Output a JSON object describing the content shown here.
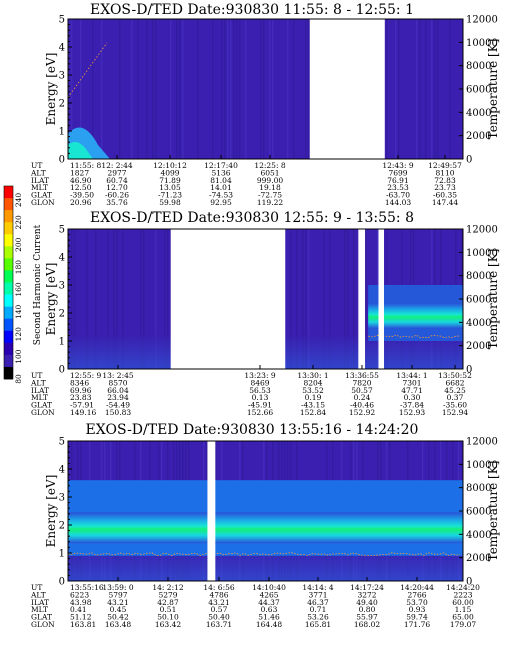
{
  "colors": {
    "background_plot": "#3a1fb0",
    "gap": "#ffffff",
    "band_cyan": "#18e6d2",
    "band_green": "#14f07a",
    "band_blue": "#1c6fe6",
    "temperature_trace": "#ff9a3a"
  },
  "colorbar": {
    "label": "Second Harmonic Current",
    "ticks": [
      "240",
      "220",
      "200",
      "180",
      "160",
      "140",
      "120",
      "100",
      "80"
    ],
    "colors": [
      "#ff0000",
      "#ff5500",
      "#ff9900",
      "#ffcc00",
      "#ffff00",
      "#aaff00",
      "#55ff00",
      "#00ff55",
      "#00ffaa",
      "#00ffff",
      "#00aaff",
      "#0055ff",
      "#0000ff",
      "#2a00b0",
      "#3a1fb0",
      "#000000"
    ]
  },
  "chart_data": [
    {
      "type": "heatmap",
      "title": "EXOS-D/TED   Date:930830   11:55: 8 - 12:55: 1",
      "ylabel": "Energy [eV]",
      "y2label": "Temperature [K]",
      "ylim": [
        0,
        5
      ],
      "y2lim": [
        0,
        12000
      ],
      "yticks": [
        "0",
        "1",
        "2",
        "3",
        "4",
        "5"
      ],
      "y2ticks": [
        "0",
        "2000",
        "4000",
        "6000",
        "8000",
        "10000",
        "12000"
      ],
      "gaps_fraction": [
        [
          0.612,
          0.802
        ]
      ],
      "band": null,
      "orbit_rows": [
        "UT",
        "ALT",
        "ILAT",
        "MLT",
        "GLAT",
        "GLON"
      ],
      "orbit_columns": [
        {
          "ut": "11:55: 8",
          "alt": "1827",
          "ilat": "46.90",
          "mlt": "12.50",
          "glat": "-39.50",
          "glon": "20.96"
        },
        {
          "ut": "12: 2:44",
          "alt": "2977",
          "ilat": "60.74",
          "mlt": "12.70",
          "glat": "-60.26",
          "glon": "35.76"
        },
        {
          "ut": "12:10:12",
          "alt": "4099",
          "ilat": "71.89",
          "mlt": "13.05",
          "glat": "-71.23",
          "glon": "59.98"
        },
        {
          "ut": "12:17:40",
          "alt": "5136",
          "ilat": "81.04",
          "mlt": "14.01",
          "glat": "-74.53",
          "glon": "92.95"
        },
        {
          "ut": "12:25: 8",
          "alt": "6051",
          "ilat": "999.00",
          "mlt": "19.18",
          "glat": "-72.75",
          "glon": "119.22"
        },
        {
          "ut": "12:43: 9",
          "alt": "7699",
          "ilat": "76.91",
          "mlt": "23.53",
          "glat": "-63.70",
          "glon": "144.03"
        },
        {
          "ut": "12:49:57",
          "alt": "8110",
          "ilat": "72.83",
          "mlt": "23.73",
          "glat": "-60.35",
          "glon": "147.44"
        }
      ]
    },
    {
      "type": "heatmap",
      "title": "EXOS-D/TED   Date:930830   12:55: 9 - 13:55: 8",
      "ylabel": "Energy [eV]",
      "y2label": "Temperature [K]",
      "ylim": [
        0,
        5
      ],
      "y2lim": [
        0,
        12000
      ],
      "yticks": [
        "0",
        "1",
        "2",
        "3",
        "4",
        "5"
      ],
      "y2ticks": [
        "0",
        "2000",
        "4000",
        "6000",
        "8000",
        "10000",
        "12000"
      ],
      "gaps_fraction": [
        [
          0.26,
          0.55
        ],
        [
          0.735,
          0.752
        ],
        [
          0.786,
          0.8
        ]
      ],
      "band": {
        "energy_center": 1.9,
        "from_fraction": 0.76,
        "to_fraction": 1.0,
        "temperature_k": 2800
      },
      "orbit_rows": [
        "UT",
        "ALT",
        "ILAT",
        "MLT",
        "GLAT",
        "GLON"
      ],
      "orbit_columns": [
        {
          "ut": "12:55: 9",
          "alt": "8346",
          "ilat": "69.96",
          "mlt": "23.83",
          "glat": "-57.91",
          "glon": "149.16"
        },
        {
          "ut": "13: 2:45",
          "alt": "8570",
          "ilat": "66.04",
          "mlt": "23.94",
          "glat": "-54.49",
          "glon": "150.83"
        },
        {
          "ut": "13:23: 9",
          "alt": "8469",
          "ilat": "56.53",
          "mlt": "0.13",
          "glat": "-45.91",
          "glon": "152.66"
        },
        {
          "ut": "13:30: 1",
          "alt": "8204",
          "ilat": "53.52",
          "mlt": "0.19",
          "glat": "-43.15",
          "glon": "152.84"
        },
        {
          "ut": "13:36:55",
          "alt": "7820",
          "ilat": "50.57",
          "mlt": "0.24",
          "glat": "-40.46",
          "glon": "152.92"
        },
        {
          "ut": "13:44: 1",
          "alt": "7301",
          "ilat": "47.71",
          "mlt": "0.30",
          "glat": "-37.84",
          "glon": "152.93"
        },
        {
          "ut": "13:50:52",
          "alt": "6682",
          "ilat": "45.25",
          "mlt": "0.37",
          "glat": "-35.60",
          "glon": "152.94"
        }
      ]
    },
    {
      "type": "heatmap",
      "title": "EXOS-D/TED   Date:930830   13:55:16 - 14:24:20",
      "ylabel": "Energy [eV]",
      "y2label": "Temperature [K]",
      "ylim": [
        0,
        5
      ],
      "y2lim": [
        0,
        12000
      ],
      "yticks": [
        "0",
        "1",
        "2",
        "3",
        "4",
        "5"
      ],
      "y2ticks": [
        "0",
        "2000",
        "4000",
        "6000",
        "8000",
        "10000",
        "12000"
      ],
      "gaps_fraction": [
        [
          0.353,
          0.373
        ]
      ],
      "band": {
        "energy_center": 1.9,
        "from_fraction": 0.0,
        "to_fraction": 1.0,
        "temperature_k": 2300
      },
      "orbit_rows": [
        "UT",
        "ALT",
        "ILAT",
        "MLT",
        "GLAT",
        "GLON"
      ],
      "orbit_columns": [
        {
          "ut": "13:55:16",
          "alt": "6223",
          "ilat": "43.98",
          "mlt": "0.41",
          "glat": "51.12",
          "glon": "163.81"
        },
        {
          "ut": "13:59: 0",
          "alt": "5797",
          "ilat": "43.21",
          "mlt": "0.45",
          "glat": "50.42",
          "glon": "163.48"
        },
        {
          "ut": "14: 2:12",
          "alt": "5279",
          "ilat": "42.87",
          "mlt": "0.51",
          "glat": "50.10",
          "glon": "163.42"
        },
        {
          "ut": "14: 6:56",
          "alt": "4786",
          "ilat": "43.21",
          "mlt": "0.57",
          "glat": "50.40",
          "glon": "163.71"
        },
        {
          "ut": "14:10:40",
          "alt": "4265",
          "ilat": "44.37",
          "mlt": "0.63",
          "glat": "51.46",
          "glon": "164.48"
        },
        {
          "ut": "14:14: 4",
          "alt": "3771",
          "ilat": "46.37",
          "mlt": "0.71",
          "glat": "53.26",
          "glon": "165.81"
        },
        {
          "ut": "14:17:24",
          "alt": "3272",
          "ilat": "49.40",
          "mlt": "0.80",
          "glat": "55.97",
          "glon": "168.02"
        },
        {
          "ut": "14:20:44",
          "alt": "2766",
          "ilat": "53.70",
          "mlt": "0.93",
          "glat": "59.74",
          "glon": "171.76"
        },
        {
          "ut": "14:24:20",
          "alt": "2223",
          "ilat": "60.00",
          "mlt": "1.15",
          "glat": "65.00",
          "glon": "179.07"
        }
      ]
    }
  ]
}
